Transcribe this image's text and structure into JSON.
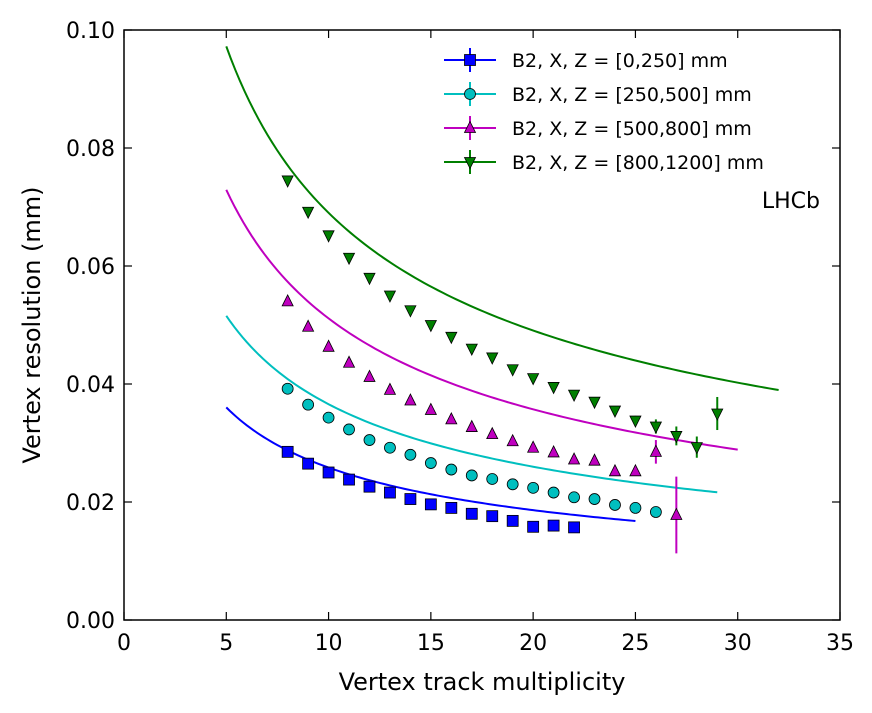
{
  "chart_data": {
    "type": "scatter",
    "title": "",
    "xlabel": "Vertex track multiplicity",
    "ylabel": "Vertex resolution (mm)",
    "xlim": [
      0,
      35
    ],
    "ylim": [
      0.0,
      0.1
    ],
    "xticks": [
      0,
      5,
      10,
      15,
      20,
      25,
      30,
      35
    ],
    "yticks": [
      0.0,
      0.02,
      0.04,
      0.06,
      0.08,
      0.1
    ],
    "xtick_labels": [
      "0",
      "5",
      "10",
      "15",
      "20",
      "25",
      "30",
      "35"
    ],
    "ytick_labels": [
      "0.00",
      "0.02",
      "0.04",
      "0.06",
      "0.08",
      "0.10"
    ],
    "grid": false,
    "legend_position": "top-right",
    "annotation": "LHCb",
    "series": [
      {
        "name": "B2, X, Z = [0,250] mm",
        "color": "#0000ff",
        "marker": "square",
        "x": [
          8,
          9,
          10,
          11,
          12,
          13,
          14,
          15,
          16,
          17,
          18,
          19,
          20,
          21,
          22
        ],
        "y": [
          0.0285,
          0.0265,
          0.025,
          0.0238,
          0.0226,
          0.0216,
          0.0205,
          0.0196,
          0.019,
          0.018,
          0.0176,
          0.0168,
          0.0158,
          0.016,
          0.0157
        ],
        "yerr": [
          0.0008,
          0.0006,
          0.0005,
          0.0005,
          0.0004,
          0.0004,
          0.0004,
          0.0004,
          0.0004,
          0.0004,
          0.0004,
          0.0004,
          0.0004,
          0.0004,
          0.0004
        ],
        "fit": {
          "a": 0.0012,
          "b": 0.0779,
          "xrange": [
            5,
            25
          ]
        }
      },
      {
        "name": "B2, X, Z = [250,500] mm",
        "color": "#00bfbf",
        "marker": "circle",
        "x": [
          8,
          9,
          10,
          11,
          12,
          13,
          14,
          15,
          16,
          17,
          18,
          19,
          20,
          21,
          22,
          23,
          24,
          25,
          26
        ],
        "y": [
          0.0392,
          0.0365,
          0.0343,
          0.0323,
          0.0305,
          0.0292,
          0.028,
          0.0266,
          0.0255,
          0.0245,
          0.0239,
          0.023,
          0.0224,
          0.0216,
          0.0208,
          0.0205,
          0.0195,
          0.019,
          0.0183
        ],
        "yerr": [
          0.0006,
          0.0005,
          0.0005,
          0.0004,
          0.0004,
          0.0004,
          0.0004,
          0.0004,
          0.0004,
          0.0004,
          0.0004,
          0.0004,
          0.0004,
          0.0004,
          0.0004,
          0.0004,
          0.0004,
          0.0004,
          0.0008
        ],
        "fit": {
          "a": 0.0004,
          "b": 0.1144,
          "xrange": [
            5,
            29
          ]
        }
      },
      {
        "name": "B2, X, Z = [500,800] mm",
        "color": "#bf00bf",
        "marker": "triangle-up",
        "x": [
          8,
          9,
          10,
          11,
          12,
          13,
          14,
          15,
          16,
          17,
          18,
          19,
          20,
          21,
          22,
          23,
          24,
          25,
          26,
          27
        ],
        "y": [
          0.054,
          0.0497,
          0.0463,
          0.0436,
          0.0412,
          0.039,
          0.0372,
          0.0356,
          0.034,
          0.0327,
          0.0315,
          0.0303,
          0.0292,
          0.0284,
          0.0272,
          0.027,
          0.0252,
          0.0252,
          0.0285,
          0.0178
        ],
        "yerr": [
          0.0006,
          0.0005,
          0.0005,
          0.0005,
          0.0005,
          0.0005,
          0.0005,
          0.0005,
          0.0005,
          0.0005,
          0.0005,
          0.0005,
          0.0005,
          0.0005,
          0.0005,
          0.0005,
          0.0005,
          0.0006,
          0.002,
          0.0065
        ],
        "fit": {
          "a": -0.0015,
          "b": 0.1664,
          "xrange": [
            5,
            30
          ]
        }
      },
      {
        "name": "B2, X, Z = [800,1200] mm",
        "color": "#007f00",
        "marker": "triangle-down",
        "x": [
          8,
          9,
          10,
          11,
          12,
          13,
          14,
          15,
          16,
          17,
          18,
          19,
          20,
          21,
          22,
          23,
          24,
          25,
          26,
          27,
          28,
          29
        ],
        "y": [
          0.0745,
          0.0692,
          0.0652,
          0.0614,
          0.058,
          0.055,
          0.0525,
          0.05,
          0.048,
          0.046,
          0.0445,
          0.0425,
          0.041,
          0.0395,
          0.0382,
          0.037,
          0.0355,
          0.0338,
          0.0328,
          0.0312,
          0.0293,
          0.035
        ],
        "yerr": [
          0.0008,
          0.0006,
          0.0006,
          0.0006,
          0.0006,
          0.0006,
          0.0006,
          0.0006,
          0.0006,
          0.0006,
          0.0006,
          0.0006,
          0.0006,
          0.0006,
          0.0006,
          0.0006,
          0.0006,
          0.0008,
          0.0012,
          0.0016,
          0.0018,
          0.0028
        ],
        "fit": {
          "a": 0.0009,
          "b": 0.2154,
          "xrange": [
            5,
            32
          ]
        }
      }
    ]
  }
}
